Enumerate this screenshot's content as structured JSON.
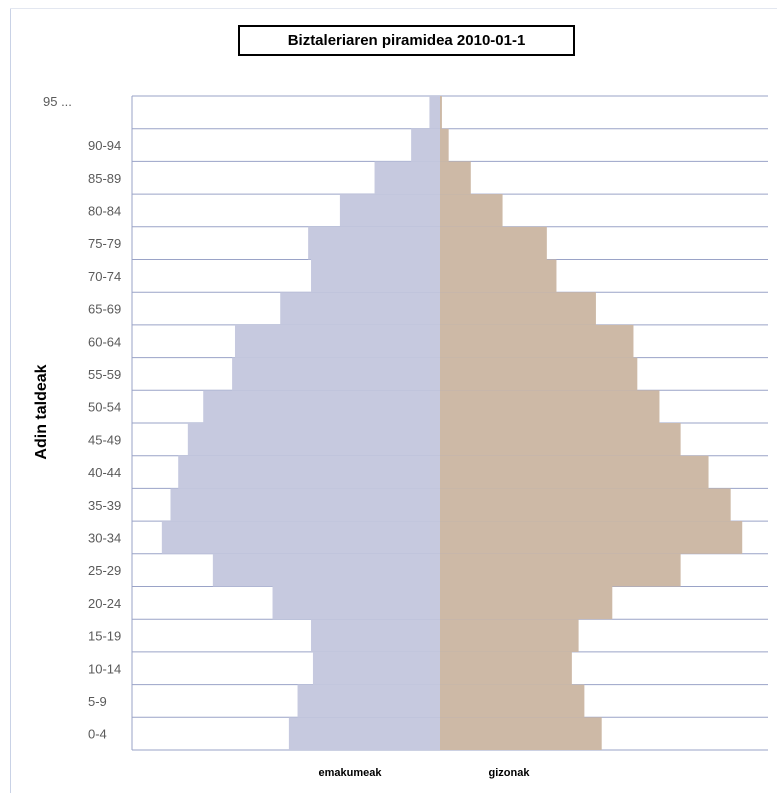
{
  "chart_data": {
    "type": "bar",
    "orientation": "horizontal-butterfly",
    "title": "Biztaleriaren piramidea  2010-01-1",
    "ylabel": "Adin taldeak",
    "xlabel": "",
    "categories": [
      "0-4",
      "5-9",
      "10-14",
      "15-19",
      "20-24",
      "25-29",
      "30-34",
      "35-39",
      "40-44",
      "45-49",
      "50-54",
      "55-59",
      "60-64",
      "65-69",
      "70-74",
      "75-79",
      "80-84",
      "85-89",
      "90-94",
      "95  ..."
    ],
    "series": [
      {
        "name": "emakumeak",
        "side": "left",
        "color": "#c6c9df",
        "values": [
          157,
          148,
          132,
          134,
          174,
          236,
          289,
          280,
          272,
          262,
          246,
          216,
          213,
          166,
          134,
          137,
          104,
          68,
          30,
          11
        ]
      },
      {
        "name": "gizonak",
        "side": "right",
        "color": "#cdb9a6",
        "values": [
          168,
          150,
          137,
          144,
          179,
          250,
          314,
          302,
          279,
          250,
          228,
          205,
          201,
          162,
          121,
          111,
          65,
          32,
          9,
          2
        ]
      }
    ],
    "xlim": [
      -320,
      320
    ],
    "grid": true,
    "legend": "bottom"
  }
}
